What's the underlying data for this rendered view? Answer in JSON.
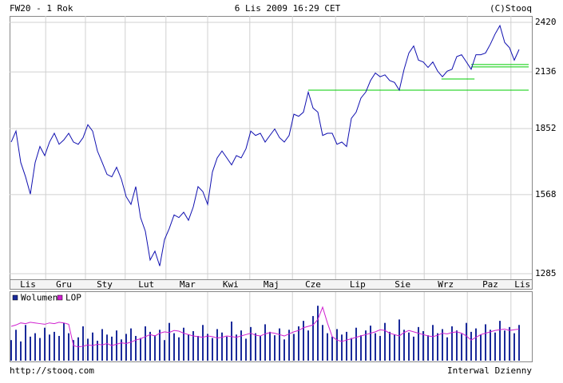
{
  "chart_data": [
    {
      "type": "line",
      "title": "FW20 - 1 Rok",
      "subtitle": "6 Lis 2009 16:29 CET",
      "annotations": [
        "(C)Stooq",
        "http://stooq.com",
        "Interwal Dzienny"
      ],
      "color": "#1010b0",
      "values": [
        1790,
        1840,
        1700,
        1640,
        1570,
        1700,
        1770,
        1730,
        1790,
        1830,
        1780,
        1800,
        1830,
        1790,
        1780,
        1810,
        1870,
        1840,
        1750,
        1700,
        1650,
        1640,
        1680,
        1630,
        1560,
        1530,
        1600,
        1480,
        1430,
        1330,
        1360,
        1310,
        1400,
        1440,
        1490,
        1480,
        1500,
        1470,
        1520,
        1600,
        1580,
        1530,
        1660,
        1720,
        1750,
        1720,
        1690,
        1730,
        1720,
        1760,
        1840,
        1820,
        1830,
        1790,
        1820,
        1850,
        1810,
        1790,
        1820,
        1920,
        1910,
        1930,
        2030,
        1950,
        1930,
        1820,
        1830,
        1830,
        1780,
        1790,
        1770,
        1900,
        1930,
        2000,
        2030,
        2090,
        2130,
        2110,
        2120,
        2090,
        2080,
        2040,
        2150,
        2240,
        2280,
        2200,
        2190,
        2160,
        2190,
        2140,
        2110,
        2140,
        2150,
        2220,
        2230,
        2190,
        2150,
        2230,
        2230,
        2240,
        2290,
        2350,
        2400,
        2300,
        2270,
        2200,
        2260
      ],
      "log": true,
      "ylim": [
        1267,
        2459
      ],
      "yticks": [
        2420,
        2136,
        1852,
        1568,
        1285
      ],
      "xlim": [
        0,
        108
      ],
      "xticks": [
        {
          "value": 3.5,
          "label": "Lis"
        },
        {
          "value": 11,
          "label": "Gru"
        },
        {
          "value": 19.5,
          "label": "Sty"
        },
        {
          "value": 28.2,
          "label": "Lut"
        },
        {
          "value": 36.8,
          "label": "Mar"
        },
        {
          "value": 45.8,
          "label": "Kwi"
        },
        {
          "value": 54.3,
          "label": "Maj"
        },
        {
          "value": 63,
          "label": "Cze"
        },
        {
          "value": 72.3,
          "label": "Lip"
        },
        {
          "value": 81.7,
          "label": "Sie"
        },
        {
          "value": 90.7,
          "label": "Wrz"
        },
        {
          "value": 100,
          "label": "Paz"
        },
        {
          "value": 106.7,
          "label": "Lis"
        }
      ],
      "xgrid": [
        7.2,
        15.5,
        23.8,
        32.3,
        41,
        49.8,
        58.7,
        67.7,
        77,
        86.2,
        95.2,
        104.3
      ],
      "grid": true,
      "levels": [
        {
          "value": 2040,
          "from": 62,
          "to": 108
        },
        {
          "value": 2098,
          "from": 89.8,
          "to": 96.7
        },
        {
          "value": 2176,
          "from": 96,
          "to": 108
        },
        {
          "value": 2163,
          "from": 96,
          "to": 108
        }
      ],
      "level_color": "#00cc00"
    },
    {
      "type": "bar",
      "ylim": [
        0,
        100
      ],
      "xlim": [
        0,
        108
      ],
      "legend": "top-left",
      "series": [
        {
          "name": "Wolumen",
          "color": "#1a2a9a",
          "values": [
            30,
            45,
            28,
            52,
            35,
            40,
            33,
            48,
            38,
            42,
            36,
            55,
            40,
            30,
            34,
            50,
            32,
            41,
            29,
            46,
            38,
            35,
            44,
            31,
            39,
            47,
            36,
            33,
            50,
            42,
            37,
            45,
            30,
            55,
            40,
            34,
            48,
            38,
            43,
            36,
            52,
            39,
            33,
            46,
            41,
            35,
            57,
            38,
            44,
            32,
            49,
            40,
            36,
            53,
            42,
            37,
            47,
            31,
            45,
            39,
            50,
            58,
            44,
            65,
            80,
            52,
            40,
            35,
            46,
            38,
            42,
            33,
            48,
            37,
            44,
            51,
            40,
            36,
            55,
            42,
            38,
            60,
            45,
            41,
            35,
            49,
            43,
            37,
            52,
            40,
            46,
            34,
            50,
            44,
            39,
            55,
            42,
            47,
            38,
            53,
            45,
            41,
            58,
            44,
            49,
            40,
            52
          ]
        },
        {
          "name": "LOP",
          "color": "#d020d0",
          "type": "line",
          "values": [
            50,
            52,
            55,
            54,
            56,
            55,
            54,
            53,
            55,
            54,
            56,
            55,
            53,
            22,
            20,
            21,
            23,
            22,
            24,
            23,
            25,
            22,
            24,
            26,
            25,
            27,
            30,
            32,
            35,
            38,
            36,
            40,
            42,
            41,
            44,
            43,
            40,
            38,
            36,
            35,
            34,
            36,
            35,
            33,
            34,
            36,
            35,
            34,
            36,
            38,
            40,
            37,
            36,
            39,
            41,
            40,
            38,
            36,
            39,
            42,
            44,
            48,
            50,
            52,
            60,
            78,
            55,
            35,
            30,
            28,
            30,
            32,
            34,
            36,
            38,
            40,
            42,
            45,
            44,
            40,
            38,
            36,
            41,
            44,
            42,
            40,
            38,
            36,
            35,
            37,
            40,
            39,
            41,
            42,
            40,
            36,
            30,
            34,
            38,
            40,
            42,
            44,
            45,
            46,
            44,
            45,
            46
          ]
        }
      ]
    }
  ]
}
